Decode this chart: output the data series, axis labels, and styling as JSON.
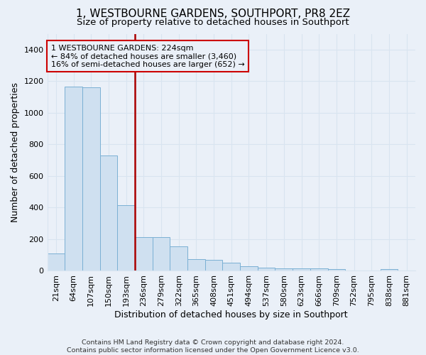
{
  "title": "1, WESTBOURNE GARDENS, SOUTHPORT, PR8 2EZ",
  "subtitle": "Size of property relative to detached houses in Southport",
  "xlabel": "Distribution of detached houses by size in Southport",
  "ylabel": "Number of detached properties",
  "bar_color": "#cfe0f0",
  "bar_edge_color": "#7ab0d4",
  "categories": [
    "21sqm",
    "64sqm",
    "107sqm",
    "150sqm",
    "193sqm",
    "236sqm",
    "279sqm",
    "322sqm",
    "365sqm",
    "408sqm",
    "451sqm",
    "494sqm",
    "537sqm",
    "580sqm",
    "623sqm",
    "666sqm",
    "709sqm",
    "752sqm",
    "795sqm",
    "838sqm",
    "881sqm"
  ],
  "values": [
    110,
    1165,
    1160,
    730,
    415,
    215,
    215,
    155,
    75,
    70,
    50,
    30,
    20,
    15,
    15,
    15,
    13,
    0,
    0,
    13,
    0
  ],
  "ylim": [
    0,
    1500
  ],
  "yticks": [
    0,
    200,
    400,
    600,
    800,
    1000,
    1200,
    1400
  ],
  "vline_x": 4.5,
  "vline_color": "#aa0000",
  "annotation_text": "1 WESTBOURNE GARDENS: 224sqm\n← 84% of detached houses are smaller (3,460)\n16% of semi-detached houses are larger (652) →",
  "annotation_box_color": "#cc0000",
  "footer": "Contains HM Land Registry data © Crown copyright and database right 2024.\nContains public sector information licensed under the Open Government Licence v3.0.",
  "background_color": "#eaf0f8",
  "grid_color": "#d8e4f0",
  "title_fontsize": 11,
  "subtitle_fontsize": 9.5,
  "axis_label_fontsize": 9,
  "tick_fontsize": 8
}
